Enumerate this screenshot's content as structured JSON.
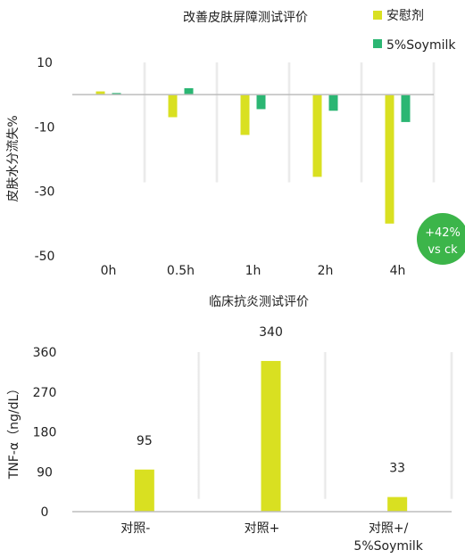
{
  "chart_data": [
    {
      "type": "bar",
      "title": "改善皮肤屏障测试评价",
      "ylabel": "皮肤水分流失%",
      "xlabel": "",
      "categories": [
        "0h",
        "0.5h",
        "1h",
        "2h",
        "4h"
      ],
      "series": [
        {
          "name": "安慰剂",
          "color": "#d9e021",
          "values": [
            1,
            -7,
            -12.5,
            -25.5,
            -40
          ]
        },
        {
          "name": "5%Soymilk",
          "color": "#2bb673",
          "values": [
            0.5,
            2,
            -4.5,
            -5,
            -8.5
          ]
        }
      ],
      "yticks": [
        "10",
        "-10",
        "-30",
        "-50"
      ],
      "ylim": [
        -50,
        10
      ],
      "grid": false,
      "legend": "top-right",
      "badge": {
        "line1": "+42%",
        "line2": "vs ck",
        "color": "#3cb54a"
      }
    },
    {
      "type": "bar",
      "title": "临床抗炎测试评价",
      "ylabel": "TNF-α（ng/dL）",
      "xlabel": "",
      "categories": [
        [
          "对照-"
        ],
        [
          "对照+"
        ],
        [
          "对照+/",
          "5%Soymilk"
        ]
      ],
      "series": [
        {
          "color": "#d9e021",
          "values": [
            95,
            340,
            33
          ]
        }
      ],
      "data_labels": [
        "95",
        "340",
        "33"
      ],
      "yticks": [
        "0",
        "90",
        "180",
        "270",
        "360"
      ],
      "ylim": [
        0,
        360
      ],
      "grid": false
    }
  ]
}
